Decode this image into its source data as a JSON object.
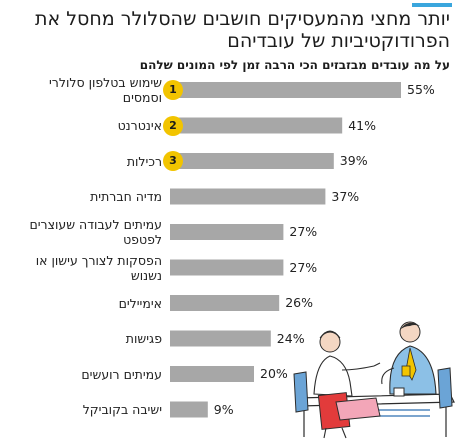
{
  "header": {
    "title": "יותר מחצי מהמעסיקים חושבים שהסלולר מחסל את הפרודוקטיביות של עובדיהם",
    "subtitle": "על מה עובדים מבזבזים הכי הרבה זמן לפי המונים שלהם"
  },
  "colors": {
    "accent": "#3aa6dd",
    "bar": "#a7a7a7",
    "badge": "#f2c400"
  },
  "chart_data": {
    "type": "bar",
    "orientation": "horizontal",
    "categories": [
      "שימוש בטלפון סלולרי וסמסים",
      "אינטרנט",
      "רכילות",
      "מדיה חברתית",
      "עמיתים לעבודה שעוצרים לפטפט",
      "הפסקות לצורך עישון או נשנוש",
      "אימיילים",
      "פגישות",
      "עמיתים רועשים",
      "ישיבה בקוביקל"
    ],
    "values": [
      55,
      41,
      39,
      37,
      27,
      27,
      26,
      24,
      20,
      9
    ],
    "value_labels": [
      "55%",
      "41%",
      "39%",
      "37%",
      "27%",
      "27%",
      "26%",
      "24%",
      "20%",
      "9%"
    ],
    "ranks": [
      "1",
      "2",
      "3"
    ],
    "xlim": [
      0,
      60
    ],
    "unit": "%"
  }
}
